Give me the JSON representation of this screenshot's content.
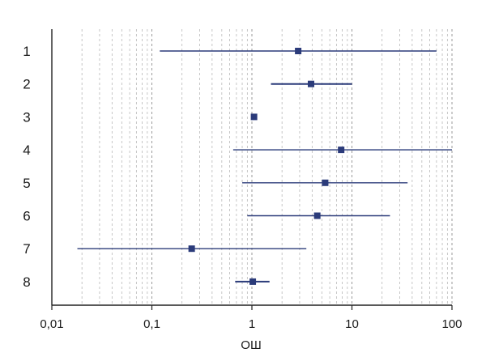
{
  "chart_data": {
    "type": "forest",
    "x_scale": "log",
    "xlim": [
      0.01,
      100
    ],
    "xlabel": "ОШ",
    "x_ticks": [
      {
        "value": 0.01,
        "label": "0,01"
      },
      {
        "value": 0.1,
        "label": "0,1"
      },
      {
        "value": 1,
        "label": "1"
      },
      {
        "value": 10,
        "label": "10"
      },
      {
        "value": 100,
        "label": "100"
      }
    ],
    "grid": "vertical-dashed",
    "color": "#2b3b7a",
    "rows": [
      {
        "label": "1",
        "or": 2.9,
        "ci_low": 0.12,
        "ci_high": 70
      },
      {
        "label": "2",
        "or": 3.9,
        "ci_low": 1.55,
        "ci_high": 10
      },
      {
        "label": "3",
        "or": 1.05,
        "ci_low": null,
        "ci_high": null
      },
      {
        "label": "4",
        "or": 7.8,
        "ci_low": 0.65,
        "ci_high": 100
      },
      {
        "label": "5",
        "or": 5.4,
        "ci_low": 0.8,
        "ci_high": 36
      },
      {
        "label": "6",
        "or": 4.5,
        "ci_low": 0.9,
        "ci_high": 24
      },
      {
        "label": "7",
        "or": 0.25,
        "ci_low": 0.018,
        "ci_high": 3.5
      },
      {
        "label": "8",
        "or": 1.02,
        "ci_low": 0.68,
        "ci_high": 1.5
      }
    ]
  }
}
